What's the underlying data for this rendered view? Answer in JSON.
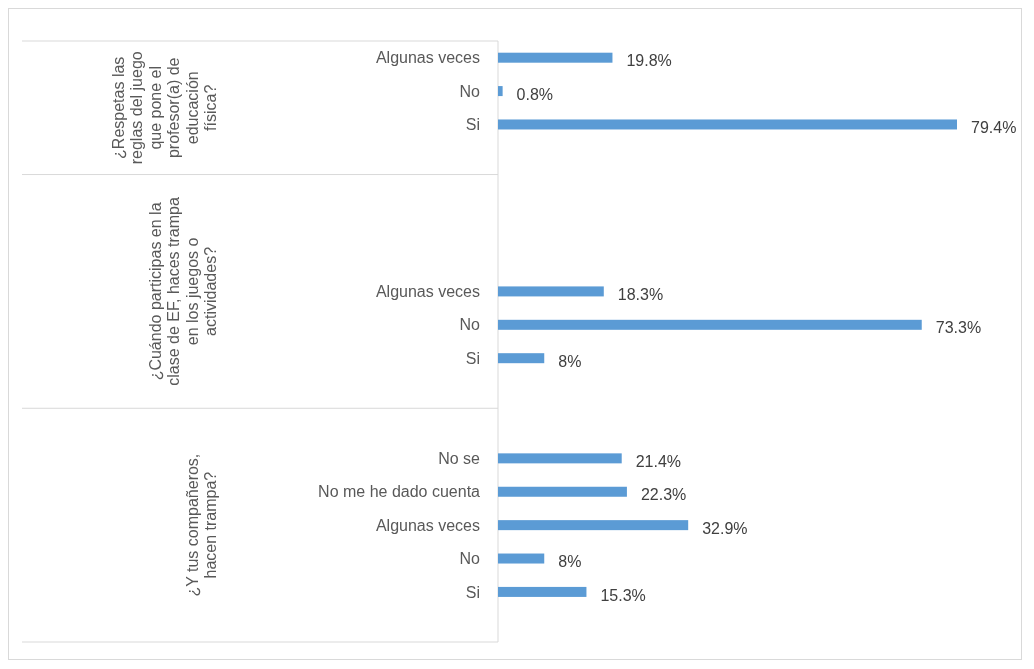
{
  "chart_data": {
    "type": "bar",
    "orientation": "horizontal",
    "categories": [
      "Algunas veces",
      "No",
      "Si",
      null,
      null,
      null,
      null,
      "Algunas veces",
      "No",
      "Si",
      null,
      null,
      "No se",
      "No me he dado cuenta",
      "Algunas veces",
      "No",
      "Si",
      null
    ],
    "values": [
      19.8,
      0.8,
      79.4,
      null,
      null,
      null,
      null,
      18.3,
      73.3,
      8,
      null,
      null,
      21.4,
      22.3,
      32.9,
      8,
      15.3,
      null
    ],
    "value_labels": [
      "19.8%",
      "0.8%",
      "79.4%",
      null,
      null,
      null,
      null,
      "18.3%",
      "73.3%",
      "8%",
      null,
      null,
      "21.4%",
      "22.3%",
      "32.9%",
      "8%",
      "15.3%",
      null
    ],
    "color": "#5b9bd5",
    "annotations": [
      "¿Respetas las reglas del juego que pone el profesor(a) de educación física?",
      "¿Cuándo participas en la clase de EF, haces trampa en los juegos o actividades?",
      "¿Y tus compañeros, hacen trampa?"
    ],
    "data_labels": false
  }
}
